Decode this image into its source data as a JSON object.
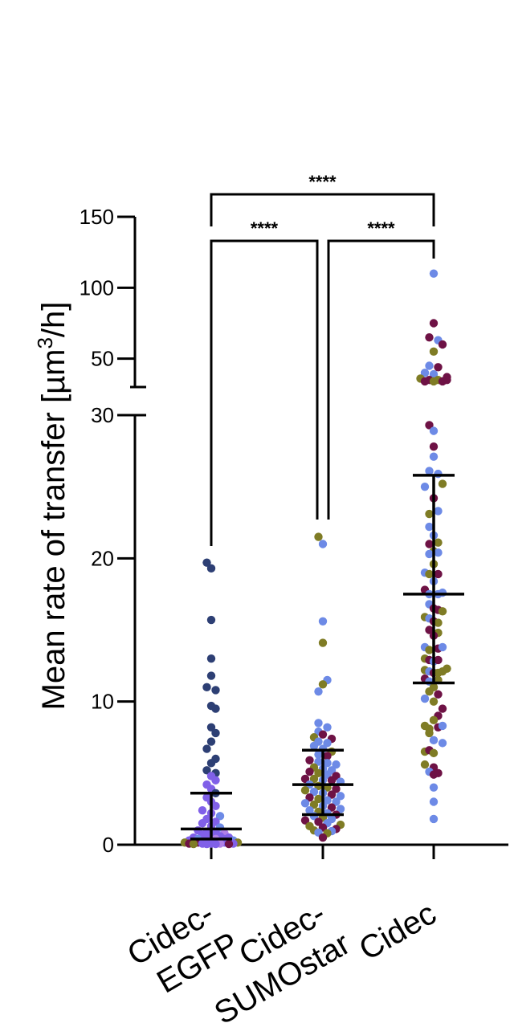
{
  "chart_data": {
    "type": "scatter",
    "subtype": "dot-plot-with-median-and-iqr",
    "ylabel_parts": [
      "Mean rate of transfer [µm",
      "3",
      "/h]"
    ],
    "categories": [
      "Cidec-EGFP",
      "Cidec-SUMOstar",
      "Cidec"
    ],
    "category_label_lines": [
      [
        "Cidec-",
        "EGFP"
      ],
      [
        "Cidec-",
        "SUMOstar"
      ],
      [
        "Cidec"
      ]
    ],
    "y_axis": {
      "broken": true,
      "lower_segment": {
        "range": [
          0,
          30
        ],
        "ticks": [
          0,
          10,
          20,
          30
        ],
        "tick_labels": [
          "0",
          "10",
          "20",
          "30"
        ]
      },
      "upper_segment": {
        "range": [
          30,
          150
        ],
        "ticks": [
          50,
          100,
          150
        ],
        "tick_labels": [
          "50",
          "100",
          "150"
        ]
      }
    },
    "grid": false,
    "legend": "none",
    "replicate_colors": [
      "#2d3f74",
      "#8060e8",
      "#6e1245",
      "#6d8ae6",
      "#7f7c25",
      "#b080e8"
    ],
    "summary_lines": [
      {
        "category": "Cidec-EGFP",
        "median": 1.1,
        "q1": 0.4,
        "q3": 3.6
      },
      {
        "category": "Cidec-SUMOstar",
        "median": 4.2,
        "q1": 2.1,
        "q3": 6.6
      },
      {
        "category": "Cidec",
        "median": 17.5,
        "q1": 11.3,
        "q3": 25.8
      }
    ],
    "significance": [
      {
        "from": "Cidec-EGFP",
        "to": "Cidec-SUMOstar",
        "label": "****"
      },
      {
        "from": "Cidec-SUMOstar",
        "to": "Cidec",
        "label": "****"
      },
      {
        "from": "Cidec-EGFP",
        "to": "Cidec",
        "label": "****"
      }
    ],
    "series": [
      {
        "category": "Cidec-EGFP",
        "points": [
          [
            -1,
            19.7,
            0
          ],
          [
            0,
            19.3,
            0
          ],
          [
            0,
            15.7,
            0
          ],
          [
            0,
            13.0,
            0
          ],
          [
            0,
            11.8,
            0
          ],
          [
            -1,
            11.0,
            0
          ],
          [
            1,
            10.8,
            0
          ],
          [
            0,
            9.7,
            0
          ],
          [
            1,
            9.5,
            0
          ],
          [
            0,
            8.2,
            0
          ],
          [
            1,
            7.8,
            0
          ],
          [
            0,
            7.2,
            0
          ],
          [
            -1,
            6.7,
            0
          ],
          [
            1,
            6.0,
            0
          ],
          [
            0,
            5.7,
            0
          ],
          [
            -1,
            5.2,
            0
          ],
          [
            1,
            5.0,
            0
          ],
          [
            0,
            4.8,
            1
          ],
          [
            1,
            4.5,
            1
          ],
          [
            -1,
            4.2,
            1
          ],
          [
            0,
            3.9,
            1
          ],
          [
            1,
            3.6,
            0
          ],
          [
            -1,
            3.3,
            1
          ],
          [
            0,
            3.0,
            1
          ],
          [
            1,
            2.7,
            1
          ],
          [
            -2,
            2.4,
            1
          ],
          [
            0,
            2.2,
            1
          ],
          [
            2,
            2.0,
            3
          ],
          [
            -1,
            1.8,
            1
          ],
          [
            1,
            1.6,
            1
          ],
          [
            -2,
            1.5,
            1
          ],
          [
            0,
            1.3,
            1
          ],
          [
            2,
            1.2,
            3
          ],
          [
            -3,
            1.0,
            1
          ],
          [
            -1,
            0.9,
            1
          ],
          [
            1,
            0.9,
            1
          ],
          [
            3,
            0.8,
            5
          ],
          [
            -2,
            0.7,
            1
          ],
          [
            0,
            0.6,
            1
          ],
          [
            2,
            0.6,
            1
          ],
          [
            -4,
            0.5,
            1
          ],
          [
            4,
            0.5,
            1
          ],
          [
            -3,
            0.4,
            3
          ],
          [
            -1,
            0.4,
            1
          ],
          [
            1,
            0.4,
            5
          ],
          [
            3,
            0.4,
            1
          ],
          [
            -5,
            0.3,
            1
          ],
          [
            5,
            0.3,
            3
          ],
          [
            -4,
            0.25,
            1
          ],
          [
            -2,
            0.25,
            1
          ],
          [
            0,
            0.25,
            1
          ],
          [
            2,
            0.25,
            1
          ],
          [
            4,
            0.25,
            1
          ],
          [
            -6,
            0.15,
            4
          ],
          [
            -3,
            0.15,
            2
          ],
          [
            -1,
            0.15,
            1
          ],
          [
            1,
            0.15,
            1
          ],
          [
            3,
            0.15,
            1
          ],
          [
            6,
            0.15,
            4
          ],
          [
            -5,
            0.08,
            2
          ],
          [
            -2,
            0.08,
            1
          ],
          [
            0,
            0.08,
            1
          ],
          [
            2,
            0.08,
            5
          ],
          [
            5,
            0.08,
            1
          ],
          [
            -4,
            0.05,
            4
          ],
          [
            4,
            0.05,
            2
          ],
          [
            -1,
            0.05,
            1
          ],
          [
            1,
            0.05,
            1
          ]
        ]
      },
      {
        "category": "Cidec-SUMOstar",
        "points": [
          [
            -1,
            21.5,
            4
          ],
          [
            0,
            21.0,
            3
          ],
          [
            0,
            15.6,
            3
          ],
          [
            0,
            14.1,
            4
          ],
          [
            1,
            11.5,
            3
          ],
          [
            0,
            11.2,
            4
          ],
          [
            -1,
            10.7,
            3
          ],
          [
            -1,
            8.5,
            3
          ],
          [
            1,
            8.2,
            3
          ],
          [
            -1,
            7.9,
            3
          ],
          [
            0,
            7.7,
            2
          ],
          [
            -2,
            7.5,
            4
          ],
          [
            2,
            7.4,
            2
          ],
          [
            -1,
            7.2,
            3
          ],
          [
            1,
            7.1,
            3
          ],
          [
            -2,
            6.9,
            3
          ],
          [
            0,
            6.7,
            3
          ],
          [
            2,
            6.5,
            4
          ],
          [
            -1,
            6.3,
            3
          ],
          [
            1,
            6.2,
            2
          ],
          [
            -3,
            5.9,
            2
          ],
          [
            -1,
            5.8,
            3
          ],
          [
            1,
            5.7,
            3
          ],
          [
            3,
            5.6,
            3
          ],
          [
            -2,
            5.4,
            4
          ],
          [
            0,
            5.3,
            3
          ],
          [
            2,
            5.2,
            3
          ],
          [
            -3,
            5.1,
            2
          ],
          [
            -1,
            5.0,
            4
          ],
          [
            1,
            4.9,
            3
          ],
          [
            3,
            4.8,
            2
          ],
          [
            -4,
            4.6,
            2
          ],
          [
            -2,
            4.6,
            4
          ],
          [
            0,
            4.5,
            3
          ],
          [
            2,
            4.5,
            2
          ],
          [
            4,
            4.4,
            3
          ],
          [
            -3,
            4.2,
            3
          ],
          [
            -1,
            4.1,
            4
          ],
          [
            1,
            4.0,
            4
          ],
          [
            3,
            3.9,
            2
          ],
          [
            -4,
            3.8,
            4
          ],
          [
            -2,
            3.7,
            3
          ],
          [
            0,
            3.6,
            3
          ],
          [
            2,
            3.5,
            2
          ],
          [
            4,
            3.4,
            3
          ],
          [
            -3,
            3.3,
            2
          ],
          [
            -1,
            3.2,
            4
          ],
          [
            1,
            3.1,
            3
          ],
          [
            3,
            3.0,
            3
          ],
          [
            -4,
            2.9,
            3
          ],
          [
            -2,
            2.8,
            4
          ],
          [
            0,
            2.7,
            3
          ],
          [
            2,
            2.6,
            2
          ],
          [
            4,
            2.5,
            3
          ],
          [
            -3,
            2.4,
            3
          ],
          [
            -1,
            2.3,
            4
          ],
          [
            1,
            2.2,
            3
          ],
          [
            3,
            2.1,
            2
          ],
          [
            -2,
            2.0,
            3
          ],
          [
            0,
            1.9,
            4
          ],
          [
            2,
            1.8,
            3
          ],
          [
            -4,
            1.7,
            2
          ],
          [
            -1,
            1.6,
            2
          ],
          [
            1,
            1.5,
            3
          ],
          [
            4,
            1.4,
            4
          ],
          [
            -3,
            1.3,
            4
          ],
          [
            0,
            1.2,
            2
          ],
          [
            3,
            1.1,
            2
          ],
          [
            -2,
            1.0,
            4
          ],
          [
            2,
            0.95,
            3
          ],
          [
            -1,
            0.85,
            3
          ],
          [
            1,
            0.8,
            4
          ],
          [
            0,
            0.5,
            2
          ]
        ]
      },
      {
        "category": "Cidec",
        "points": [
          [
            0,
            110,
            3
          ],
          [
            0,
            75,
            2
          ],
          [
            -1,
            65,
            2
          ],
          [
            1,
            63,
            3
          ],
          [
            2,
            60,
            2
          ],
          [
            0,
            55,
            4
          ],
          [
            -1,
            45,
            3
          ],
          [
            1,
            44,
            2
          ],
          [
            -2,
            40,
            3
          ],
          [
            0,
            39,
            3
          ],
          [
            3,
            37,
            2
          ],
          [
            -3,
            36,
            4
          ],
          [
            -1,
            35,
            2
          ],
          [
            1,
            35,
            4
          ],
          [
            3,
            35,
            2
          ],
          [
            -2,
            34,
            2
          ],
          [
            0,
            34,
            4
          ],
          [
            2,
            34,
            2
          ],
          [
            -1,
            29.3,
            2
          ],
          [
            0,
            28.9,
            3
          ],
          [
            0,
            27.8,
            2
          ],
          [
            0,
            27.1,
            3
          ],
          [
            -1,
            26.1,
            3
          ],
          [
            1,
            25.9,
            3
          ],
          [
            -2,
            25.0,
            3
          ],
          [
            2,
            25.2,
            4
          ],
          [
            0,
            24.2,
            2
          ],
          [
            -1,
            23.1,
            4
          ],
          [
            1,
            23.3,
            3
          ],
          [
            -1,
            22.2,
            3
          ],
          [
            0,
            21.6,
            3
          ],
          [
            -1,
            21.0,
            2
          ],
          [
            1,
            21.1,
            4
          ],
          [
            0,
            20.5,
            4
          ],
          [
            -1,
            20.3,
            3
          ],
          [
            1,
            20.4,
            3
          ],
          [
            0,
            19.6,
            4
          ],
          [
            -2,
            19.0,
            3
          ],
          [
            -1,
            18.9,
            4
          ],
          [
            1,
            18.9,
            2
          ],
          [
            0,
            18.4,
            3
          ],
          [
            -2,
            17.8,
            2
          ],
          [
            -1,
            17.5,
            3
          ],
          [
            1,
            17.5,
            3
          ],
          [
            2,
            17.6,
            3
          ],
          [
            -1,
            16.8,
            3
          ],
          [
            0,
            16.5,
            2
          ],
          [
            1,
            16.4,
            2
          ],
          [
            2,
            16.3,
            4
          ],
          [
            -2,
            15.9,
            4
          ],
          [
            -1,
            15.8,
            3
          ],
          [
            0,
            15.6,
            2
          ],
          [
            1,
            15.5,
            4
          ],
          [
            -1,
            15.0,
            2
          ],
          [
            1,
            14.8,
            4
          ],
          [
            0,
            14.6,
            2
          ],
          [
            -2,
            13.8,
            3
          ],
          [
            -1,
            13.6,
            4
          ],
          [
            1,
            13.7,
            2
          ],
          [
            2,
            13.8,
            3
          ],
          [
            -2,
            13.0,
            4
          ],
          [
            -1,
            12.9,
            2
          ],
          [
            0,
            12.8,
            3
          ],
          [
            1,
            12.9,
            2
          ],
          [
            -2,
            12.2,
            4
          ],
          [
            -1,
            12.1,
            3
          ],
          [
            0,
            12.0,
            2
          ],
          [
            1,
            12.0,
            4
          ],
          [
            2,
            12.1,
            4
          ],
          [
            3,
            12.3,
            4
          ],
          [
            -2,
            11.6,
            2
          ],
          [
            -1,
            11.4,
            3
          ],
          [
            1,
            11.5,
            4
          ],
          [
            0,
            11.0,
            4
          ],
          [
            -1,
            10.7,
            4
          ],
          [
            1,
            10.5,
            2
          ],
          [
            -2,
            10.2,
            3
          ],
          [
            0,
            10.0,
            4
          ],
          [
            2,
            9.5,
            2
          ],
          [
            1,
            9.0,
            2
          ],
          [
            0,
            8.7,
            4
          ],
          [
            -2,
            8.3,
            4
          ],
          [
            -1,
            8.1,
            4
          ],
          [
            1,
            8.2,
            2
          ],
          [
            2,
            8.3,
            3
          ],
          [
            -1,
            7.8,
            4
          ],
          [
            0,
            7.3,
            3
          ],
          [
            2,
            7.1,
            3
          ],
          [
            -2,
            6.5,
            4
          ],
          [
            -1,
            6.6,
            2
          ],
          [
            0,
            6.4,
            4
          ],
          [
            -2,
            5.6,
            4
          ],
          [
            0,
            5.4,
            2
          ],
          [
            -1,
            5.1,
            3
          ],
          [
            0,
            4.9,
            2
          ],
          [
            1,
            5.0,
            2
          ],
          [
            0,
            4.0,
            3
          ],
          [
            0,
            3.0,
            3
          ],
          [
            0,
            1.8,
            3
          ]
        ]
      }
    ]
  }
}
